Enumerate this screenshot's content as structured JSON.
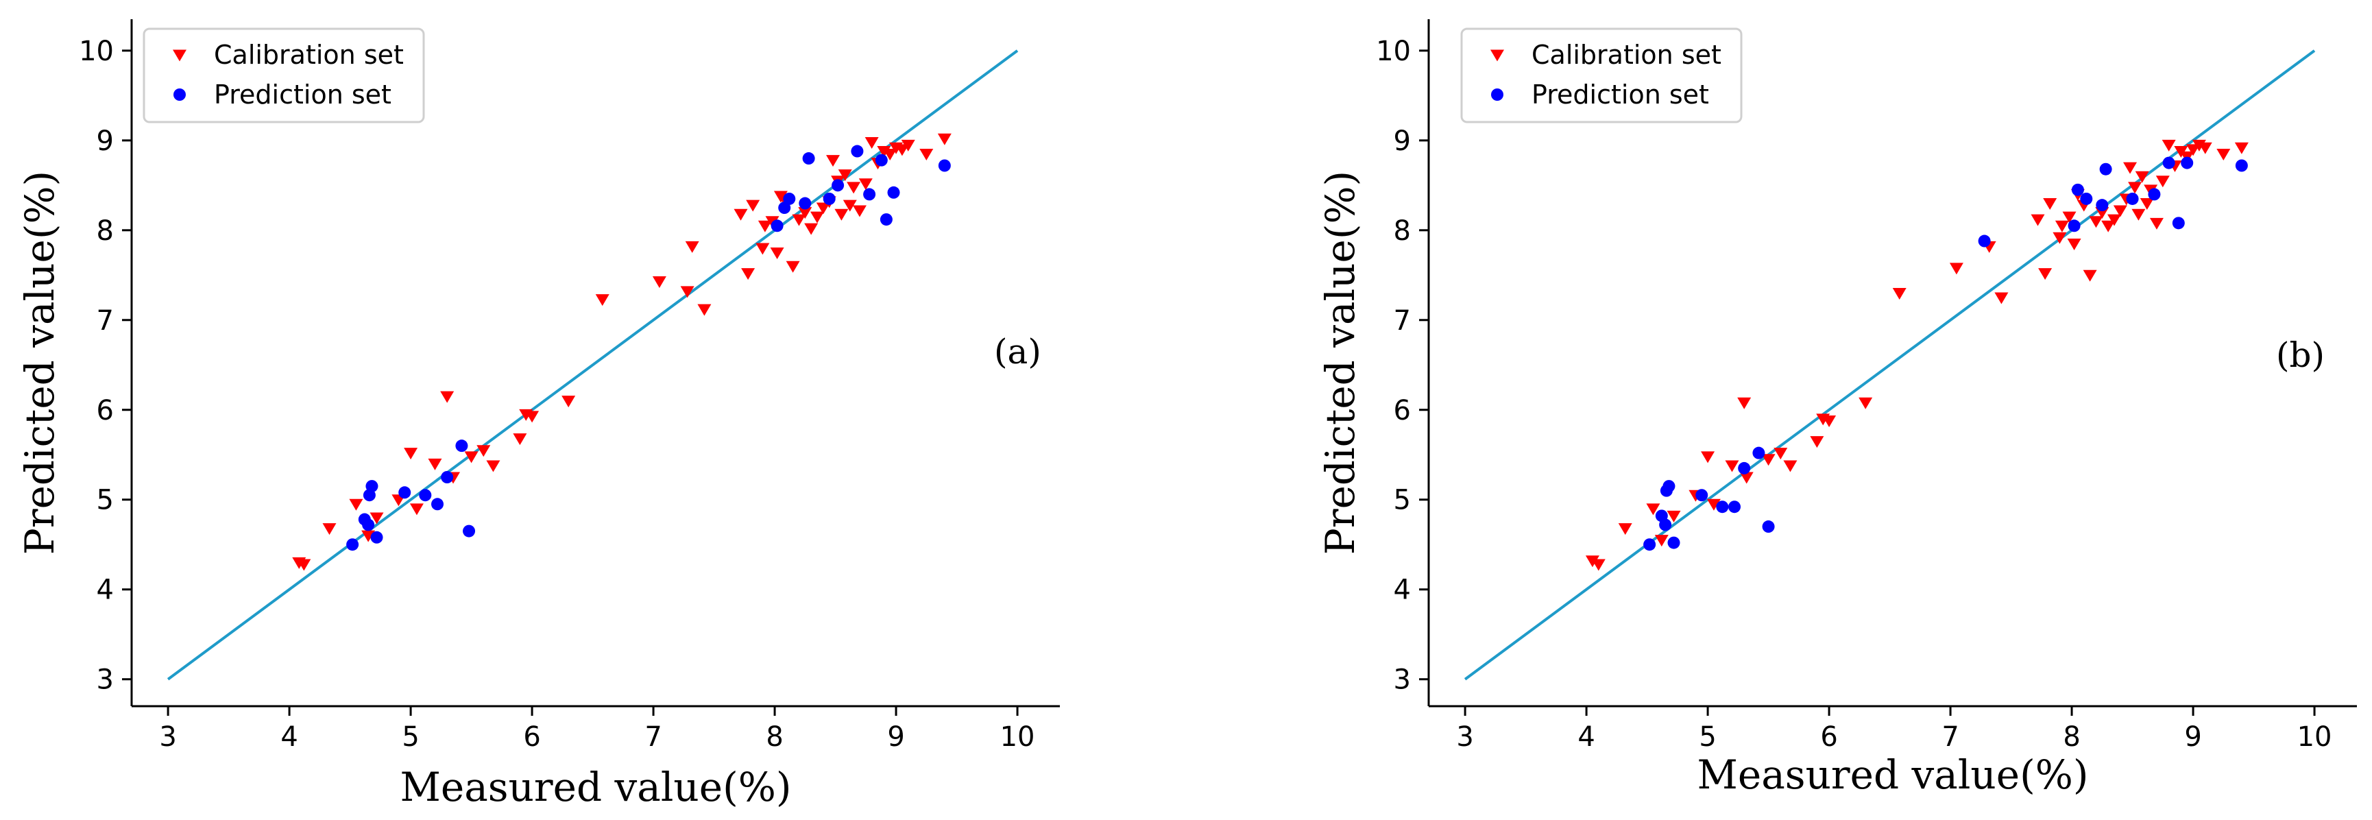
{
  "chart_data": [
    {
      "type": "scatter",
      "panel_label": "(a)",
      "xlabel": "Measured value(%)",
      "ylabel": "Predicted value(%)",
      "xlim": [
        2.7,
        10.35
      ],
      "ylim": [
        2.7,
        10.35
      ],
      "xticks": [
        3,
        4,
        5,
        6,
        7,
        8,
        9,
        10
      ],
      "yticks": [
        3,
        4,
        5,
        6,
        7,
        8,
        9,
        10
      ],
      "grid": false,
      "legend_position": "top-left",
      "reference_line": {
        "x": [
          3,
          10
        ],
        "y": [
          3,
          10
        ],
        "color": "#1f9bc9"
      },
      "series": [
        {
          "name": "Calibration set",
          "marker": "triangle-down",
          "color": "#ff0000",
          "points": [
            [
              4.08,
              4.3
            ],
            [
              4.12,
              4.28
            ],
            [
              4.33,
              4.68
            ],
            [
              4.55,
              4.95
            ],
            [
              4.65,
              4.6
            ],
            [
              4.72,
              4.8
            ],
            [
              4.9,
              5.0
            ],
            [
              5.0,
              5.52
            ],
            [
              5.05,
              4.9
            ],
            [
              5.2,
              5.4
            ],
            [
              5.3,
              6.15
            ],
            [
              5.35,
              5.25
            ],
            [
              5.5,
              5.48
            ],
            [
              5.6,
              5.55
            ],
            [
              5.68,
              5.38
            ],
            [
              5.9,
              5.68
            ],
            [
              5.95,
              5.95
            ],
            [
              6.0,
              5.93
            ],
            [
              6.3,
              6.1
            ],
            [
              6.58,
              7.23
            ],
            [
              7.05,
              7.43
            ],
            [
              7.28,
              7.32
            ],
            [
              7.32,
              7.82
            ],
            [
              7.42,
              7.12
            ],
            [
              7.72,
              8.18
            ],
            [
              7.78,
              7.52
            ],
            [
              7.82,
              8.28
            ],
            [
              7.9,
              7.8
            ],
            [
              7.92,
              8.05
            ],
            [
              7.98,
              8.1
            ],
            [
              8.02,
              7.75
            ],
            [
              8.05,
              8.38
            ],
            [
              8.1,
              8.3
            ],
            [
              8.15,
              7.6
            ],
            [
              8.2,
              8.12
            ],
            [
              8.25,
              8.2
            ],
            [
              8.3,
              8.02
            ],
            [
              8.35,
              8.15
            ],
            [
              8.4,
              8.25
            ],
            [
              8.45,
              8.32
            ],
            [
              8.48,
              8.78
            ],
            [
              8.52,
              8.55
            ],
            [
              8.55,
              8.18
            ],
            [
              8.58,
              8.62
            ],
            [
              8.62,
              8.28
            ],
            [
              8.65,
              8.48
            ],
            [
              8.7,
              8.22
            ],
            [
              8.75,
              8.52
            ],
            [
              8.8,
              8.98
            ],
            [
              8.85,
              8.75
            ],
            [
              8.9,
              8.88
            ],
            [
              8.95,
              8.85
            ],
            [
              9.0,
              8.92
            ],
            [
              9.05,
              8.9
            ],
            [
              9.1,
              8.95
            ],
            [
              9.25,
              8.85
            ],
            [
              9.4,
              9.02
            ]
          ]
        },
        {
          "name": "Prediction set",
          "marker": "circle",
          "color": "#0000ff",
          "points": [
            [
              4.52,
              4.5
            ],
            [
              4.62,
              4.78
            ],
            [
              4.65,
              4.72
            ],
            [
              4.66,
              5.05
            ],
            [
              4.68,
              5.15
            ],
            [
              4.72,
              4.58
            ],
            [
              4.95,
              5.08
            ],
            [
              5.12,
              5.05
            ],
            [
              5.22,
              4.95
            ],
            [
              5.3,
              5.25
            ],
            [
              5.42,
              5.6
            ],
            [
              5.48,
              4.65
            ],
            [
              8.02,
              8.05
            ],
            [
              8.08,
              8.25
            ],
            [
              8.12,
              8.35
            ],
            [
              8.25,
              8.3
            ],
            [
              8.28,
              8.8
            ],
            [
              8.45,
              8.35
            ],
            [
              8.52,
              8.5
            ],
            [
              8.68,
              8.88
            ],
            [
              8.78,
              8.4
            ],
            [
              8.88,
              8.78
            ],
            [
              8.92,
              8.12
            ],
            [
              8.98,
              8.42
            ],
            [
              9.4,
              8.72
            ]
          ]
        }
      ]
    },
    {
      "type": "scatter",
      "panel_label": "(b)",
      "xlabel": "Measured value(%)",
      "ylabel": "Predicted value(%)",
      "xlim": [
        2.7,
        10.35
      ],
      "ylim": [
        2.7,
        10.35
      ],
      "xticks": [
        3,
        4,
        5,
        6,
        7,
        8,
        9,
        10
      ],
      "yticks": [
        3,
        4,
        5,
        6,
        7,
        8,
        9,
        10
      ],
      "grid": false,
      "legend_position": "top-left",
      "reference_line": {
        "x": [
          3,
          10
        ],
        "y": [
          3,
          10
        ],
        "color": "#1f9bc9"
      },
      "series": [
        {
          "name": "Calibration set",
          "marker": "triangle-down",
          "color": "#ff0000",
          "points": [
            [
              4.05,
              4.32
            ],
            [
              4.1,
              4.28
            ],
            [
              4.32,
              4.68
            ],
            [
              4.55,
              4.9
            ],
            [
              4.62,
              4.55
            ],
            [
              4.72,
              4.82
            ],
            [
              4.9,
              5.05
            ],
            [
              5.0,
              5.48
            ],
            [
              5.05,
              4.95
            ],
            [
              5.2,
              5.38
            ],
            [
              5.3,
              6.08
            ],
            [
              5.32,
              5.25
            ],
            [
              5.5,
              5.45
            ],
            [
              5.6,
              5.52
            ],
            [
              5.68,
              5.38
            ],
            [
              5.9,
              5.65
            ],
            [
              5.95,
              5.9
            ],
            [
              6.0,
              5.88
            ],
            [
              6.3,
              6.08
            ],
            [
              6.58,
              7.3
            ],
            [
              7.05,
              7.58
            ],
            [
              7.32,
              7.82
            ],
            [
              7.42,
              7.25
            ],
            [
              7.72,
              8.12
            ],
            [
              7.78,
              7.52
            ],
            [
              7.82,
              8.3
            ],
            [
              7.9,
              7.92
            ],
            [
              7.92,
              8.05
            ],
            [
              7.98,
              8.15
            ],
            [
              8.02,
              7.85
            ],
            [
              8.05,
              8.4
            ],
            [
              8.1,
              8.28
            ],
            [
              8.15,
              7.5
            ],
            [
              8.2,
              8.1
            ],
            [
              8.25,
              8.2
            ],
            [
              8.3,
              8.05
            ],
            [
              8.35,
              8.12
            ],
            [
              8.4,
              8.22
            ],
            [
              8.45,
              8.35
            ],
            [
              8.48,
              8.7
            ],
            [
              8.52,
              8.48
            ],
            [
              8.55,
              8.18
            ],
            [
              8.58,
              8.6
            ],
            [
              8.62,
              8.3
            ],
            [
              8.65,
              8.45
            ],
            [
              8.7,
              8.08
            ],
            [
              8.75,
              8.55
            ],
            [
              8.8,
              8.95
            ],
            [
              8.85,
              8.72
            ],
            [
              8.9,
              8.88
            ],
            [
              8.95,
              8.82
            ],
            [
              9.0,
              8.9
            ],
            [
              9.05,
              8.95
            ],
            [
              9.1,
              8.92
            ],
            [
              9.25,
              8.85
            ],
            [
              9.4,
              8.92
            ]
          ]
        },
        {
          "name": "Prediction set",
          "marker": "circle",
          "color": "#0000ff",
          "points": [
            [
              4.52,
              4.5
            ],
            [
              4.62,
              4.82
            ],
            [
              4.65,
              4.72
            ],
            [
              4.66,
              5.1
            ],
            [
              4.68,
              5.15
            ],
            [
              4.72,
              4.52
            ],
            [
              4.95,
              5.05
            ],
            [
              5.12,
              4.92
            ],
            [
              5.22,
              4.92
            ],
            [
              5.3,
              5.35
            ],
            [
              5.42,
              5.52
            ],
            [
              5.5,
              4.7
            ],
            [
              7.28,
              7.88
            ],
            [
              8.02,
              8.05
            ],
            [
              8.05,
              8.45
            ],
            [
              8.12,
              8.35
            ],
            [
              8.25,
              8.28
            ],
            [
              8.28,
              8.68
            ],
            [
              8.5,
              8.35
            ],
            [
              8.68,
              8.4
            ],
            [
              8.8,
              8.75
            ],
            [
              8.88,
              8.08
            ],
            [
              8.95,
              8.75
            ],
            [
              9.4,
              8.72
            ]
          ]
        }
      ]
    }
  ]
}
